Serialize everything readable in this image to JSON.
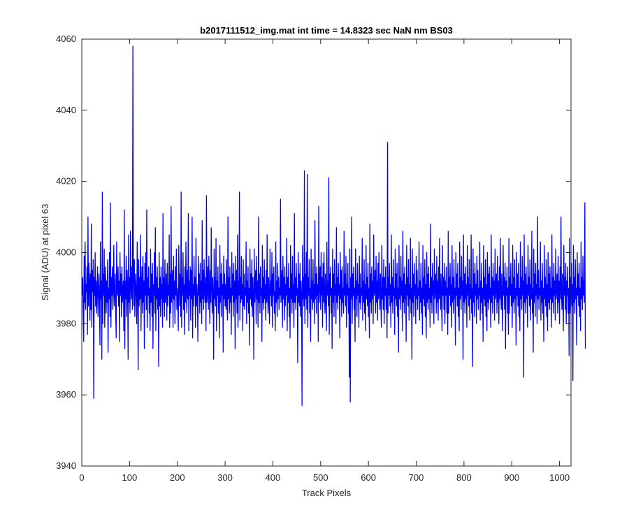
{
  "chart_data": {
    "type": "line",
    "title": "b2017111512_img.mat int time = 14.8323 sec  NaN nm BS03",
    "xlabel": "Track Pixels",
    "ylabel": "Signal (ADU) at pixel 63",
    "xlim": [
      0,
      1024
    ],
    "ylim": [
      3940,
      4060
    ],
    "xticks": [
      "0",
      "100",
      "200",
      "300",
      "400",
      "500",
      "600",
      "700",
      "800",
      "900",
      "1000"
    ],
    "yticks": [
      "3940",
      "3960",
      "3980",
      "4000",
      "4020",
      "4040",
      "4060"
    ],
    "xtick_values": [
      0,
      100,
      200,
      300,
      400,
      500,
      600,
      700,
      800,
      900,
      1000
    ],
    "ytick_values": [
      3940,
      3960,
      3980,
      4000,
      4020,
      4040,
      4060
    ],
    "grid": false,
    "series": [
      {
        "color": "#0000ff",
        "x_start": 1,
        "x_step": 1,
        "values": [
          3988,
          3993,
          3982,
          3975,
          3999,
          3986,
          4003,
          3984,
          3991,
          3989,
          3996,
          3977,
          4010,
          3985,
          3997,
          3991,
          3981,
          3994,
          3984,
          4008,
          3979,
          3995,
          3989,
          3998,
          3959,
          3993,
          3988,
          4000,
          3985,
          3992,
          3983,
          3990,
          3996,
          3982,
          3989,
          3994,
          3986,
          3974,
          4003,
          3987,
          3992,
          3970,
          4017,
          3980,
          3994,
          3988,
          4001,
          3979,
          3990,
          3996,
          3983,
          3992,
          3986,
          3998,
          3972,
          3990,
          3987,
          4000,
          3982,
          4014,
          3979,
          3993,
          3988,
          3996,
          3984,
          3990,
          4002,
          3985,
          3990,
          3994,
          3983,
          3976,
          4003,
          3991,
          3988,
          3996,
          3985,
          3992,
          3975,
          4000,
          3988,
          3994,
          3982,
          3996,
          3986,
          3989,
          3992,
          3978,
          4012,
          3973,
          3992,
          3987,
          3999,
          3982,
          3995,
          3990,
          3970,
          4005,
          3986,
          3993,
          3983,
          4006,
          3990,
          3987,
          3996,
          3984,
          4058,
          3992,
          3985,
          3998,
          3982,
          3990,
          3994,
          3987,
          3980,
          4003,
          3991,
          3967,
          3998,
          3985,
          3993,
          3987,
          4005,
          3978,
          3991,
          3996,
          3983,
          3999,
          3986,
          3992,
          3973,
          3997,
          3988,
          4000,
          3984,
          4012,
          3979,
          3993,
          3988,
          3996,
          3983,
          3990,
          3978,
          4001,
          3986,
          3994,
          3982,
          3997,
          3973,
          3991,
          3988,
          4000,
          3983,
          4007,
          3978,
          3993,
          3987,
          3996,
          3984,
          3990,
          3968,
          4000,
          3985,
          3993,
          3982,
          3996,
          3987,
          3991,
          3979,
          4011,
          3986,
          3993,
          3982,
          3998,
          3986,
          3989,
          3994,
          3981,
          3997,
          3985,
          3991,
          3988,
          4005,
          3979,
          3994,
          3983,
          4013,
          3986,
          3990,
          3995,
          3979,
          3999,
          3987,
          3992,
          3980,
          3996,
          3988,
          4001,
          3984,
          3990,
          3986,
          3978,
          4002,
          3991,
          3985,
          3994,
          3982,
          4017,
          3979,
          3993,
          3988,
          4000,
          3984,
          3991,
          3977,
          3996,
          3986,
          4003,
          3989,
          3983,
          3995,
          3987,
          4011,
          3978,
          3992,
          3988,
          3996,
          3981,
          3995,
          3987,
          4010,
          3976,
          3991,
          3985,
          3999,
          3988,
          3993,
          3979,
          4004,
          3985,
          3991,
          3987,
          3975,
          3999,
          3988,
          3994,
          3983,
          3997,
          3986,
          3992,
          3980,
          4009,
          3987,
          3995,
          3984,
          3998,
          3989,
          3986,
          3993,
          3978,
          4016,
          3986,
          3990,
          3996,
          3984,
          3999,
          3989,
          3980,
          3995,
          3986,
          4007,
          3990,
          3983,
          3993,
          3988,
          3970,
          4001,
          3987,
          3993,
          3985,
          4004,
          3978,
          3992,
          3988,
          3996,
          3983,
          3990,
          3976,
          4002,
          3986,
          3994,
          3982,
          3997,
          3988,
          3991,
          3972,
          3999,
          3987,
          3994,
          3985,
          3991,
          3984,
          3998,
          3986,
          3981,
          4010,
          3987,
          3993,
          3983,
          3996,
          3986,
          3990,
          3977,
          4000,
          3988,
          3994,
          3982,
          3997,
          3986,
          3992,
          3973,
          3999,
          3987,
          3995,
          3983,
          4005,
          3979,
          3992,
          3988,
          4017,
          3981,
          3993,
          3986,
          3999,
          3987,
          3991,
          3978,
          3998,
          3985,
          3994,
          3984,
          3990,
          3988,
          4003,
          3980,
          3992,
          3986,
          3996,
          3983,
          3990,
          3974,
          4001,
          3987,
          3994,
          3985,
          3998,
          3982,
          3993,
          3988,
          3970,
          4001,
          3986,
          3991,
          3995,
          3980,
          3999,
          3987,
          3992,
          3979,
          4010,
          3986,
          3994,
          3983,
          3996,
          3988,
          3990,
          3975,
          4002,
          3986,
          3993,
          3984,
          3998,
          3987,
          3991,
          3981,
          3995,
          3986,
          4005,
          3988,
          3983,
          3993,
          3987,
          3980,
          4001,
          3988,
          3992,
          3985,
          4000,
          3979,
          3994,
          3988,
          3996,
          3983,
          3989,
          3978,
          4003,
          3986,
          3992,
          3982,
          3997,
          3987,
          3993,
          3984,
          3990,
          3988,
          4015,
          3986,
          3990,
          3995,
          3979,
          3999,
          3987,
          3993,
          3981,
          3996,
          3985,
          3991,
          3988,
          4004,
          3978,
          3993,
          3986,
          3997,
          3982,
          3990,
          3976,
          4002,
          3987,
          3994,
          3983,
          3999,
          3986,
          3991,
          3979,
          4011,
          3986,
          3993,
          3984,
          3997,
          3988,
          3990,
          3969,
          4000,
          3986,
          3994,
          3985,
          3997,
          3982,
          3992,
          3988,
          3957,
          4002,
          3987,
          3993,
          3985,
          4023,
          3980,
          3994,
          3987,
          4000,
          3984,
          4022,
          3979,
          3993,
          3988,
          3998,
          3983,
          3990,
          3975,
          4001,
          3987,
          3992,
          3984,
          3998,
          3986,
          3991,
          3980,
          4009,
          3987,
          3994,
          3983,
          3996,
          3988,
          3991,
          3975,
          4013,
          3986,
          3991,
          3996,
          3984,
          4000,
          3988,
          3993,
          3979,
          3997,
          3986,
          4000,
          3989,
          3983,
          3994,
          3987,
          3978,
          4003,
          3988,
          3992,
          3985,
          4021,
          3977,
          3994,
          3988,
          3996,
          3983,
          3990,
          3973,
          4001,
          3986,
          3994,
          3982,
          3998,
          3988,
          3991,
          3980,
          4007,
          3986,
          3993,
          3984,
          3997,
          3988,
          3991,
          3976,
          4000,
          3987,
          3995,
          3982,
          3996,
          3986,
          3990,
          3983,
          4006,
          3988,
          3994,
          3985,
          3999,
          3979,
          3991,
          3988,
          3997,
          3983,
          3990,
          3965,
          4001,
          3958,
          3993,
          3987,
          4010,
          3980,
          3994,
          3988,
          3996,
          3984,
          3990,
          3975,
          4001,
          3987,
          3992,
          3982,
          3997,
          3988,
          3991,
          3979,
          3999,
          3986,
          3994,
          3984,
          3990,
          3988,
          4004,
          3981,
          3992,
          3986,
          3998,
          3983,
          3991,
          3978,
          4002,
          3987,
          3993,
          3985,
          3997,
          3982,
          3990,
          3976,
          4008,
          3986,
          3994,
          3983,
          3996,
          3987,
          3992,
          3980,
          4005,
          3988,
          3990,
          3995,
          3983,
          3999,
          3986,
          3992,
          3981,
          3997,
          3987,
          4000,
          3989,
          3984,
          3994,
          3986,
          3979,
          4002,
          3987,
          3993,
          3984,
          3998,
          3980,
          3993,
          3988,
          3996,
          3984,
          3990,
          3976,
          4031,
          3983,
          3993,
          3988,
          3997,
          3985,
          3991,
          3979,
          4005,
          3986,
          3993,
          3983,
          3998,
          3988,
          3990,
          3977,
          4001,
          3987,
          3994,
          3985,
          3997,
          3982,
          3990,
          3972,
          4002,
          3987,
          3993,
          3984,
          3999,
          3988,
          3992,
          3978,
          4006,
          3986,
          3994,
          3983,
          3996,
          3987,
          3991,
          3975,
          4002,
          3988,
          3993,
          3985,
          3998,
          3981,
          3991,
          3987,
          4004,
          3983,
          3990,
          3970,
          4001,
          3986,
          3994,
          3982,
          3997,
          3988,
          3991,
          3980,
          3999,
          3987,
          3995,
          3984,
          3990,
          3988,
          4003,
          3981,
          3992,
          3986,
          3997,
          3983,
          3990,
          3977,
          4002,
          3987,
          3993,
          3985,
          3998,
          3982,
          3991,
          3976,
          4000,
          3986,
          3994,
          3984,
          3996,
          3987,
          3990,
          3979,
          4008,
          3986,
          3993,
          3983,
          3997,
          3988,
          3992,
          3980,
          4001,
          3987,
          3990,
          3994,
          3983,
          3999,
          3986,
          3992,
          3981,
          3996,
          3987,
          4004,
          3989,
          3984,
          3994,
          3986,
          3978,
          4002,
          3988,
          3993,
          3984,
          3997,
          3980,
          3992,
          3988,
          3996,
          3983,
          3990,
          3977,
          4006,
          3983,
          3993,
          3988,
          3997,
          3985,
          3991,
          3979,
          4002,
          3986,
          3993,
          3983,
          3998,
          3987,
          3990,
          3974,
          4000,
          3988,
          3994,
          3985,
          3997,
          3982,
          3990,
          3978,
          4003,
          3987,
          3993,
          3984,
          3999,
          3988,
          3992,
          3970,
          4005,
          3986,
          3994,
          3983,
          3996,
          3987,
          3991,
          3979,
          4002,
          3988,
          3993,
          3985,
          3998,
          3981,
          3991,
          3987,
          4005,
          3983,
          3990,
          3968,
          4001,
          3986,
          3994,
          3982,
          3997,
          3988,
          3991,
          3980,
          3999,
          3987,
          3995,
          3984,
          3990,
          3988,
          4003,
          3981,
          3992,
          3986,
          3997,
          3983,
          3990,
          3975,
          4002,
          3987,
          3993,
          3985,
          3998,
          3982,
          3991,
          3978,
          4000,
          3986,
          3994,
          3984,
          3996,
          3987,
          3990,
          3979,
          4005,
          3986,
          3993,
          3983,
          3997,
          3988,
          3992,
          3981,
          4001,
          3987,
          3990,
          3994,
          3983,
          3999,
          3986,
          3992,
          3980,
          3996,
          3987,
          4004,
          3989,
          3984,
          3994,
          3986,
          3978,
          4002,
          3988,
          3993,
          3984,
          3997,
          3973,
          3992,
          3988,
          3996,
          3983,
          3990,
          3977,
          4004,
          3983,
          3993,
          3988,
          3997,
          3985,
          3991,
          3979,
          4002,
          3986,
          3993,
          3983,
          3998,
          3987,
          3990,
          3974,
          4000,
          3988,
          3994,
          3985,
          3997,
          3982,
          3990,
          3978,
          4003,
          3987,
          3993,
          3984,
          3999,
          3988,
          3992,
          3965,
          4005,
          3986,
          3994,
          3983,
          3996,
          3987,
          3991,
          3979,
          4002,
          3988,
          3993,
          3985,
          3998,
          3981,
          3991,
          3987,
          4006,
          3983,
          3990,
          3972,
          4001,
          3986,
          3994,
          3982,
          3997,
          3988,
          3991,
          3980,
          4010,
          3987,
          3995,
          3984,
          3990,
          3988,
          4003,
          3981,
          3992,
          3986,
          3997,
          3983,
          3990,
          3975,
          4002,
          3987,
          3993,
          3985,
          3998,
          3982,
          3991,
          3978,
          4000,
          3986,
          3994,
          3984,
          3996,
          3987,
          3990,
          3979,
          4005,
          3986,
          3993,
          3983,
          3997,
          3988,
          3992,
          3981,
          4001,
          3987,
          3990,
          3994,
          3983,
          3999,
          3986,
          3992,
          3980,
          3996,
          3987,
          4010,
          3989,
          3984,
          3994,
          3986,
          3978,
          4002,
          3988,
          3993,
          3984,
          3997,
          3980,
          3992,
          3988,
          3996,
          3983,
          3990,
          3971,
          4004,
          3983,
          3993,
          3988,
          3997,
          3985,
          3991,
          3964,
          4002,
          3986,
          3993,
          3983,
          3998,
          3987,
          3990,
          3974,
          4000,
          3988,
          3994,
          3985,
          3997,
          3982,
          3990,
          3978,
          4003,
          3987,
          3993,
          3984,
          3999,
          3988,
          3992,
          3986,
          4014,
          3973
        ]
      }
    ]
  }
}
